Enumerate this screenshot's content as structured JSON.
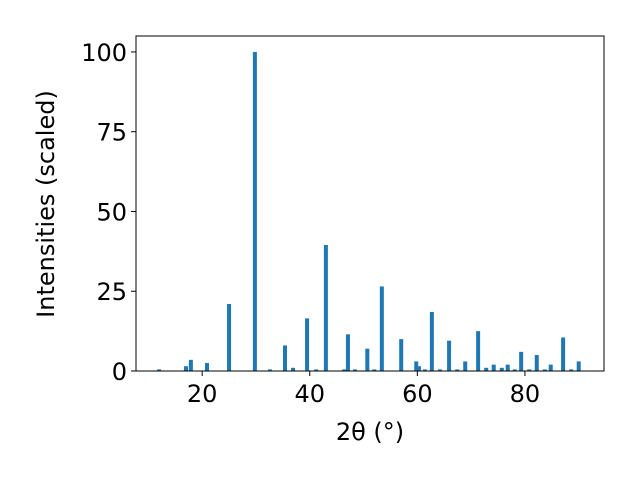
{
  "chart_data": {
    "type": "bar",
    "xlabel": "2θ (°)",
    "ylabel": "Intensities (scaled)",
    "color": "#1f77b4",
    "x": [
      12.0,
      17.0,
      17.9,
      20.9,
      25.0,
      29.8,
      32.6,
      35.4,
      36.9,
      39.5,
      41.2,
      43.0,
      46.4,
      47.1,
      48.4,
      50.7,
      52.0,
      53.4,
      57.0,
      59.8,
      60.3,
      61.4,
      62.7,
      64.2,
      65.9,
      67.4,
      68.9,
      71.3,
      72.8,
      74.2,
      75.7,
      76.8,
      78.1,
      79.3,
      80.8,
      82.2,
      83.7,
      84.8,
      87.1,
      88.6,
      90.0
    ],
    "values": [
      0.5,
      1.5,
      3.5,
      2.5,
      21,
      100,
      0.5,
      8,
      1,
      16.5,
      0.5,
      39.5,
      0.5,
      11.5,
      0.5,
      7,
      0.5,
      26.5,
      10,
      3,
      1.5,
      0.5,
      18.5,
      0.5,
      9.5,
      0.5,
      3,
      12.5,
      1,
      2,
      1,
      2,
      0.5,
      6,
      0.5,
      5,
      0.5,
      2,
      10.5,
      0.5,
      3
    ],
    "xlim": [
      7.7,
      94.7
    ],
    "ylim": [
      0,
      105
    ],
    "xticks": [
      20,
      40,
      60,
      80
    ],
    "yticks": [
      0,
      25,
      50,
      75,
      100
    ]
  }
}
